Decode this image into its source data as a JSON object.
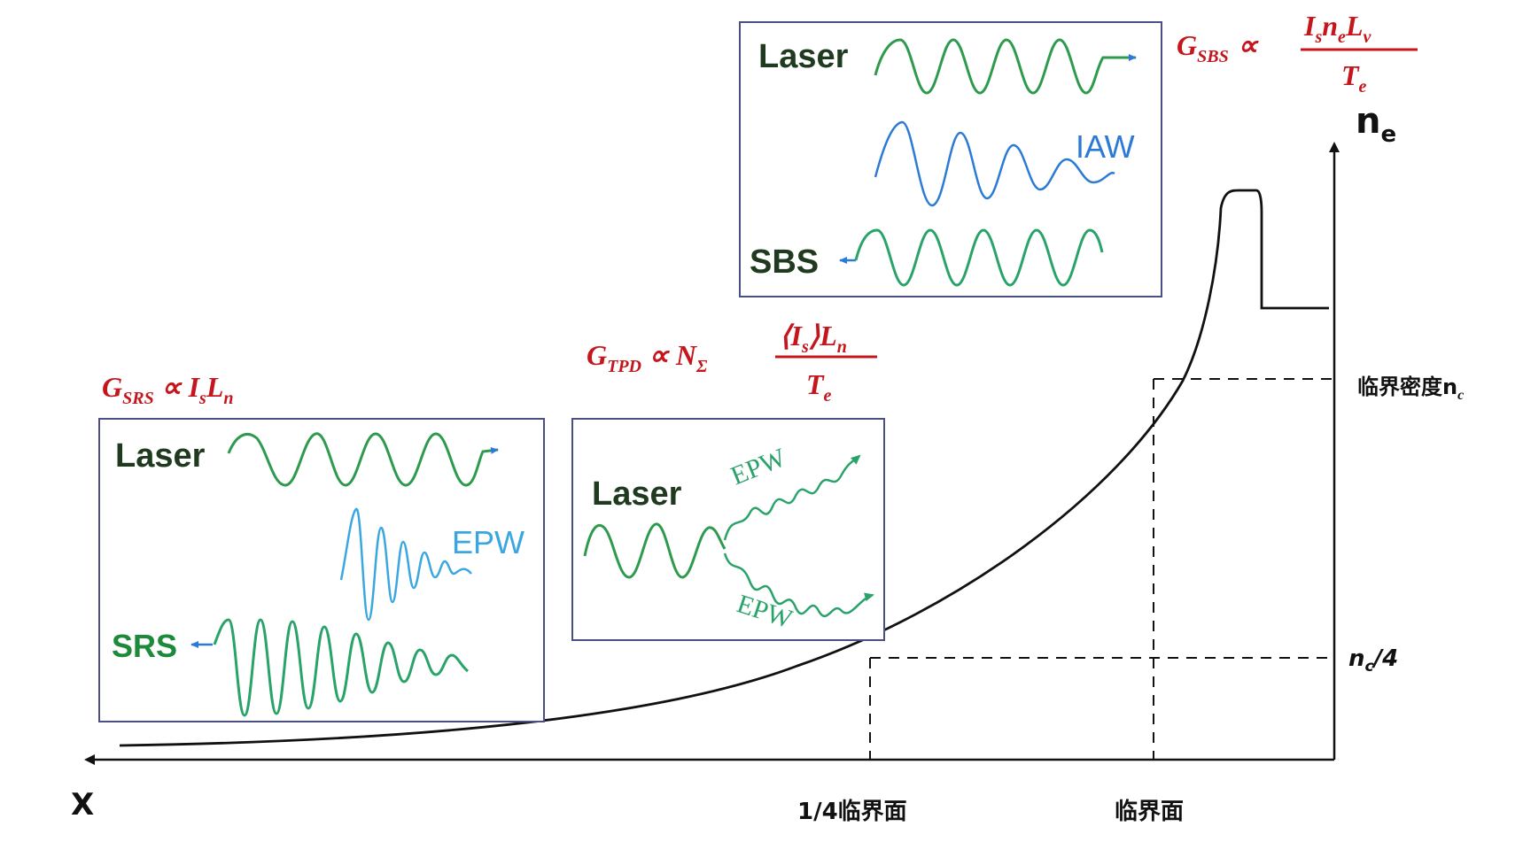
{
  "colors": {
    "equation": "#c4161c",
    "laser_wave": "#2e9a4e",
    "scatter_wave": "#2aa36a",
    "iaw_wave": "#2b7bd6",
    "epw_wave": "#3aa7e0",
    "box_border": "#4a4f86",
    "arrow_blue": "#2b7bd6"
  },
  "axes": {
    "y_label": "n",
    "y_label_sub": "e",
    "x_label": "X",
    "critical_density_label": "临界密度n",
    "critical_density_sub": "c",
    "quarter_density_label": "n",
    "quarter_density_sub": "c",
    "quarter_density_suffix": "/4",
    "quarter_surface_label": "1/4临界面",
    "critical_surface_label": "临界面"
  },
  "srs": {
    "gain_G": "G",
    "gain_sub": "SRS",
    "gain_rhs": "∝ I",
    "gain_rhs_sub": "s",
    "gain_rhs_tail": "L",
    "gain_rhs_tail_sub": "n",
    "laser_label": "Laser",
    "epw_label": "EPW",
    "scatter_label": "SRS"
  },
  "tpd": {
    "gain_G": "G",
    "gain_sub": "TPD",
    "gain_mid": "∝ N",
    "gain_mid_sub": "Σ",
    "numerator": "⟨I",
    "numerator_sub": "s",
    "numerator_tail": "⟩L",
    "numerator_tail_sub": "n",
    "denominator": "T",
    "denominator_sub": "e",
    "laser_label": "Laser",
    "epw_top_label": "EPW",
    "epw_bottom_label": "EPW"
  },
  "sbs": {
    "gain_G": "G",
    "gain_sub": "SBS",
    "gain_mid": "∝",
    "numerator_I": "I",
    "numerator_I_sub": "s",
    "numerator_n": "n",
    "numerator_n_sub": "e",
    "numerator_L": "L",
    "numerator_L_sub": "v",
    "denominator": "T",
    "denominator_sub": "e",
    "laser_label": "Laser",
    "iaw_label": "IAW",
    "scatter_label": "SBS"
  }
}
